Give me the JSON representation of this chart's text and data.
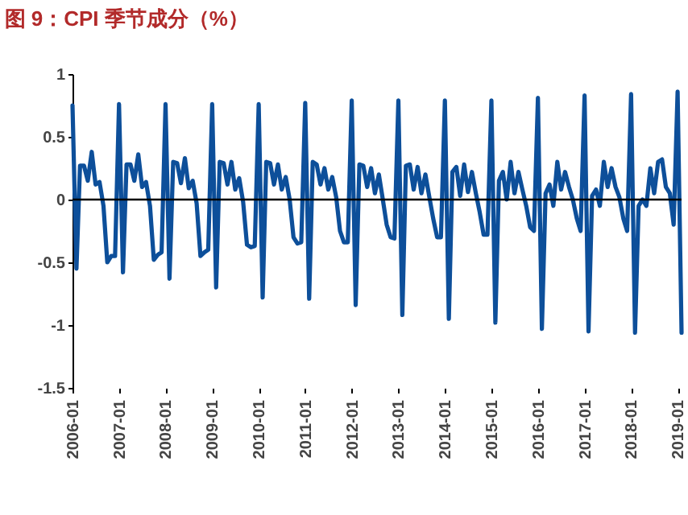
{
  "chart_data": {
    "type": "line",
    "title": "图 9：CPI 季节成分（%）",
    "x": [
      "2006-01",
      "2006-02",
      "2006-03",
      "2006-04",
      "2006-05",
      "2006-06",
      "2006-07",
      "2006-08",
      "2006-09",
      "2006-10",
      "2006-11",
      "2006-12",
      "2007-01",
      "2007-02",
      "2007-03",
      "2007-04",
      "2007-05",
      "2007-06",
      "2007-07",
      "2007-08",
      "2007-09",
      "2007-10",
      "2007-11",
      "2007-12",
      "2008-01",
      "2008-02",
      "2008-03",
      "2008-04",
      "2008-05",
      "2008-06",
      "2008-07",
      "2008-08",
      "2008-09",
      "2008-10",
      "2008-11",
      "2008-12",
      "2009-01",
      "2009-02",
      "2009-03",
      "2009-04",
      "2009-05",
      "2009-06",
      "2009-07",
      "2009-08",
      "2009-09",
      "2009-10",
      "2009-11",
      "2009-12",
      "2010-01",
      "2010-02",
      "2010-03",
      "2010-04",
      "2010-05",
      "2010-06",
      "2010-07",
      "2010-08",
      "2010-09",
      "2010-10",
      "2010-11",
      "2010-12",
      "2011-01",
      "2011-02",
      "2011-03",
      "2011-04",
      "2011-05",
      "2011-06",
      "2011-07",
      "2011-08",
      "2011-09",
      "2011-10",
      "2011-11",
      "2011-12",
      "2012-01",
      "2012-02",
      "2012-03",
      "2012-04",
      "2012-05",
      "2012-06",
      "2012-07",
      "2012-08",
      "2012-09",
      "2012-10",
      "2012-11",
      "2012-12",
      "2013-01",
      "2013-02",
      "2013-03",
      "2013-04",
      "2013-05",
      "2013-06",
      "2013-07",
      "2013-08",
      "2013-09",
      "2013-10",
      "2013-11",
      "2013-12",
      "2014-01",
      "2014-02",
      "2014-03",
      "2014-04",
      "2014-05",
      "2014-06",
      "2014-07",
      "2014-08",
      "2014-09",
      "2014-10",
      "2014-11",
      "2014-12",
      "2015-01",
      "2015-02",
      "2015-03",
      "2015-04",
      "2015-05",
      "2015-06",
      "2015-07",
      "2015-08",
      "2015-09",
      "2015-10",
      "2015-11",
      "2015-12",
      "2016-01",
      "2016-02",
      "2016-03",
      "2016-04",
      "2016-05",
      "2016-06",
      "2016-07",
      "2016-08",
      "2016-09",
      "2016-10",
      "2016-11",
      "2016-12",
      "2017-01",
      "2017-02",
      "2017-03",
      "2017-04",
      "2017-05",
      "2017-06",
      "2017-07",
      "2017-08",
      "2017-09",
      "2017-10",
      "2017-11",
      "2017-12",
      "2018-01",
      "2018-02",
      "2018-03",
      "2018-04",
      "2018-05",
      "2018-06",
      "2018-07",
      "2018-08",
      "2018-09",
      "2018-10",
      "2018-11",
      "2018-12",
      "2019-01",
      "2019-02"
    ],
    "series": [
      {
        "color": "#0d4f9a",
        "values": [
          0.75,
          -0.55,
          0.27,
          0.27,
          0.15,
          0.38,
          0.12,
          0.14,
          -0.05,
          -0.5,
          -0.45,
          -0.45,
          0.76,
          -0.58,
          0.28,
          0.28,
          0.15,
          0.36,
          0.1,
          0.14,
          -0.05,
          -0.48,
          -0.44,
          -0.42,
          0.76,
          -0.63,
          0.3,
          0.29,
          0.13,
          0.33,
          0.09,
          0.15,
          -0.03,
          -0.45,
          -0.42,
          -0.4,
          0.76,
          -0.7,
          0.3,
          0.29,
          0.12,
          0.3,
          0.08,
          0.17,
          -0.02,
          -0.36,
          -0.38,
          -0.37,
          0.76,
          -0.78,
          0.3,
          0.29,
          0.12,
          0.28,
          0.08,
          0.18,
          0.0,
          -0.3,
          -0.35,
          -0.34,
          0.77,
          -0.79,
          0.3,
          0.28,
          0.12,
          0.25,
          0.08,
          0.18,
          0.02,
          -0.25,
          -0.34,
          -0.34,
          0.79,
          -0.84,
          0.28,
          0.27,
          0.1,
          0.25,
          0.05,
          0.2,
          0.0,
          -0.2,
          -0.3,
          -0.31,
          0.79,
          -0.92,
          0.27,
          0.28,
          0.08,
          0.26,
          0.05,
          0.2,
          0.02,
          -0.15,
          -0.3,
          -0.3,
          0.79,
          -0.95,
          0.22,
          0.26,
          0.03,
          0.28,
          0.06,
          0.22,
          0.05,
          -0.1,
          -0.28,
          -0.28,
          0.79,
          -0.98,
          0.15,
          0.22,
          0.0,
          0.3,
          0.05,
          0.22,
          0.08,
          -0.05,
          -0.22,
          -0.25,
          0.81,
          -1.03,
          0.05,
          0.12,
          -0.05,
          0.3,
          0.08,
          0.22,
          0.1,
          0.0,
          -0.15,
          -0.25,
          0.83,
          -1.05,
          0.03,
          0.08,
          -0.05,
          0.3,
          0.1,
          0.25,
          0.1,
          0.02,
          -0.15,
          -0.25,
          0.84,
          -1.06,
          -0.05,
          0.0,
          -0.05,
          0.25,
          0.05,
          0.3,
          0.32,
          0.1,
          0.05,
          -0.2,
          0.86,
          -1.06
        ]
      }
    ],
    "xlim": [
      "2006-01",
      "2019-02"
    ],
    "xticks": [
      "2006-01",
      "2007-01",
      "2008-01",
      "2009-01",
      "2010-01",
      "2011-01",
      "2012-01",
      "2013-01",
      "2014-01",
      "2015-01",
      "2016-01",
      "2017-01",
      "2018-01",
      "2019-01"
    ],
    "ylim": [
      -1.5,
      1
    ],
    "yticks": [
      1,
      0.5,
      0,
      -0.5,
      -1,
      -1.5
    ],
    "ref_lines": [
      {
        "axis": "y",
        "value": 0,
        "color": "#000000"
      }
    ]
  }
}
